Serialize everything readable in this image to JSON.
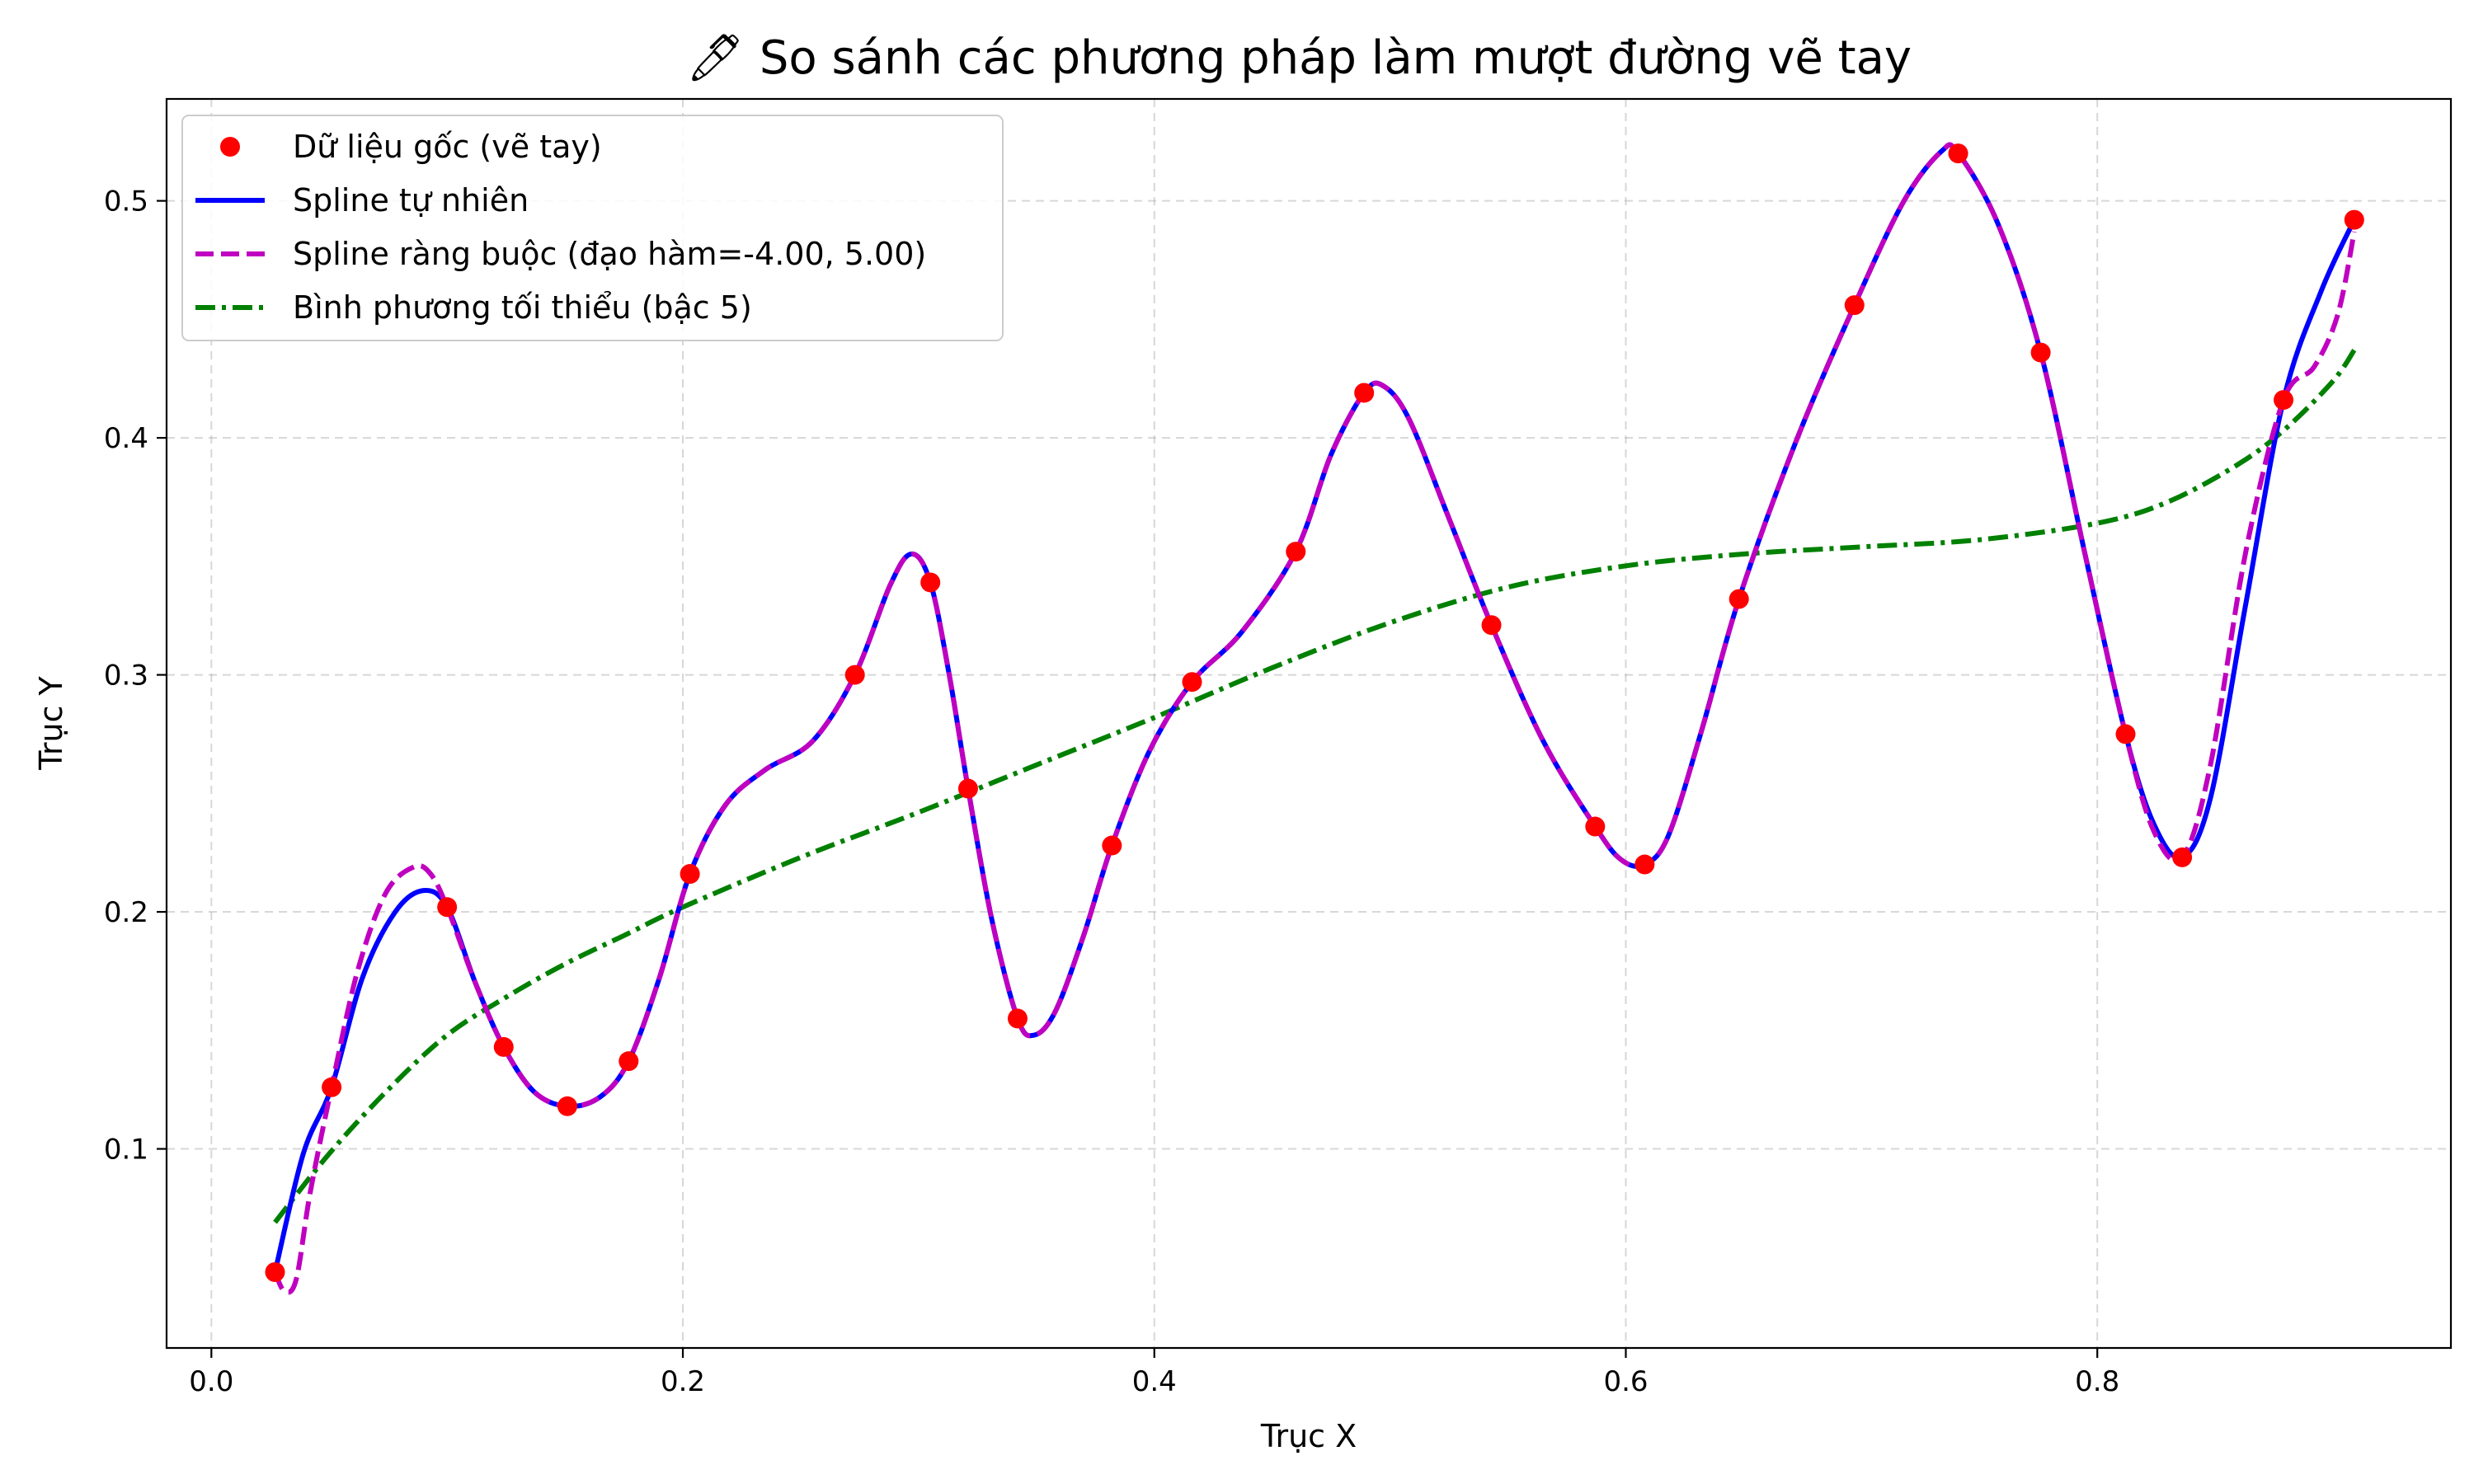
{
  "chart_data": {
    "type": "line",
    "title": "🖊 So sánh các phương pháp làm mượt đường vẽ tay",
    "xlabel": "Trục X",
    "ylabel": "Trục Y",
    "xlim": [
      -0.019,
      0.95
    ],
    "ylim": [
      0.016,
      0.543
    ],
    "xticks": [
      0.0,
      0.2,
      0.4,
      0.6,
      0.8
    ],
    "xtick_labels": [
      "0.0",
      "0.2",
      "0.4",
      "0.6",
      "0.8"
    ],
    "yticks": [
      0.1,
      0.2,
      0.3,
      0.4,
      0.5
    ],
    "ytick_labels": [
      "0.1",
      "0.2",
      "0.3",
      "0.4",
      "0.5"
    ],
    "grid": true,
    "legend_position": "top-left",
    "series": [
      {
        "name": "Dữ liệu gốc (vẽ tay)",
        "kind": "scatter",
        "color": "#ff0000",
        "points": [
          [
            0.027,
            0.048
          ],
          [
            0.051,
            0.126
          ],
          [
            0.1,
            0.202
          ],
          [
            0.124,
            0.143
          ],
          [
            0.151,
            0.118
          ],
          [
            0.177,
            0.137
          ],
          [
            0.203,
            0.216
          ],
          [
            0.273,
            0.3
          ],
          [
            0.305,
            0.339
          ],
          [
            0.321,
            0.252
          ],
          [
            0.342,
            0.155
          ],
          [
            0.382,
            0.228
          ],
          [
            0.416,
            0.297
          ],
          [
            0.46,
            0.352
          ],
          [
            0.489,
            0.419
          ],
          [
            0.543,
            0.321
          ],
          [
            0.587,
            0.236
          ],
          [
            0.608,
            0.22
          ],
          [
            0.648,
            0.332
          ],
          [
            0.697,
            0.456
          ],
          [
            0.741,
            0.52
          ],
          [
            0.776,
            0.436
          ],
          [
            0.812,
            0.275
          ],
          [
            0.836,
            0.223
          ],
          [
            0.879,
            0.416
          ],
          [
            0.909,
            0.492
          ]
        ]
      },
      {
        "name": "Spline tự nhiên",
        "kind": "line",
        "style": "solid",
        "color": "#0000ff",
        "points": [
          [
            0.027,
            0.048
          ],
          [
            0.039,
            0.098
          ],
          [
            0.051,
            0.126
          ],
          [
            0.064,
            0.172
          ],
          [
            0.078,
            0.2
          ],
          [
            0.09,
            0.209
          ],
          [
            0.1,
            0.202
          ],
          [
            0.112,
            0.17
          ],
          [
            0.124,
            0.143
          ],
          [
            0.137,
            0.124
          ],
          [
            0.151,
            0.118
          ],
          [
            0.165,
            0.122
          ],
          [
            0.177,
            0.137
          ],
          [
            0.19,
            0.172
          ],
          [
            0.203,
            0.216
          ],
          [
            0.218,
            0.245
          ],
          [
            0.235,
            0.26
          ],
          [
            0.255,
            0.272
          ],
          [
            0.273,
            0.3
          ],
          [
            0.288,
            0.338
          ],
          [
            0.297,
            0.351
          ],
          [
            0.305,
            0.339
          ],
          [
            0.313,
            0.3
          ],
          [
            0.321,
            0.252
          ],
          [
            0.331,
            0.197
          ],
          [
            0.342,
            0.155
          ],
          [
            0.349,
            0.148
          ],
          [
            0.358,
            0.158
          ],
          [
            0.37,
            0.19
          ],
          [
            0.382,
            0.228
          ],
          [
            0.398,
            0.268
          ],
          [
            0.416,
            0.297
          ],
          [
            0.437,
            0.318
          ],
          [
            0.46,
            0.352
          ],
          [
            0.475,
            0.393
          ],
          [
            0.489,
            0.419
          ],
          [
            0.497,
            0.422
          ],
          [
            0.508,
            0.408
          ],
          [
            0.525,
            0.366
          ],
          [
            0.543,
            0.321
          ],
          [
            0.565,
            0.272
          ],
          [
            0.587,
            0.236
          ],
          [
            0.598,
            0.222
          ],
          [
            0.608,
            0.22
          ],
          [
            0.618,
            0.232
          ],
          [
            0.632,
            0.276
          ],
          [
            0.648,
            0.332
          ],
          [
            0.672,
            0.398
          ],
          [
            0.697,
            0.456
          ],
          [
            0.718,
            0.5
          ],
          [
            0.734,
            0.521
          ],
          [
            0.741,
            0.52
          ],
          [
            0.758,
            0.49
          ],
          [
            0.776,
            0.436
          ],
          [
            0.795,
            0.35
          ],
          [
            0.812,
            0.275
          ],
          [
            0.824,
            0.237
          ],
          [
            0.836,
            0.223
          ],
          [
            0.848,
            0.248
          ],
          [
            0.863,
            0.33
          ],
          [
            0.879,
            0.416
          ],
          [
            0.895,
            0.462
          ],
          [
            0.909,
            0.492
          ]
        ]
      },
      {
        "name": "Spline ràng buộc (đạo hàm=-4.00, 5.00)",
        "kind": "line",
        "style": "dashed",
        "color": "#c000c0",
        "points": [
          [
            0.027,
            0.048
          ],
          [
            0.031,
            0.04
          ],
          [
            0.036,
            0.045
          ],
          [
            0.042,
            0.082
          ],
          [
            0.051,
            0.126
          ],
          [
            0.062,
            0.175
          ],
          [
            0.074,
            0.208
          ],
          [
            0.086,
            0.219
          ],
          [
            0.093,
            0.216
          ],
          [
            0.1,
            0.202
          ],
          [
            0.112,
            0.17
          ],
          [
            0.124,
            0.143
          ],
          [
            0.137,
            0.124
          ],
          [
            0.151,
            0.118
          ],
          [
            0.165,
            0.122
          ],
          [
            0.177,
            0.137
          ],
          [
            0.19,
            0.172
          ],
          [
            0.203,
            0.216
          ],
          [
            0.218,
            0.245
          ],
          [
            0.235,
            0.26
          ],
          [
            0.255,
            0.272
          ],
          [
            0.273,
            0.3
          ],
          [
            0.288,
            0.338
          ],
          [
            0.297,
            0.351
          ],
          [
            0.305,
            0.339
          ],
          [
            0.313,
            0.3
          ],
          [
            0.321,
            0.252
          ],
          [
            0.331,
            0.197
          ],
          [
            0.342,
            0.155
          ],
          [
            0.349,
            0.148
          ],
          [
            0.358,
            0.158
          ],
          [
            0.37,
            0.19
          ],
          [
            0.382,
            0.228
          ],
          [
            0.398,
            0.268
          ],
          [
            0.416,
            0.297
          ],
          [
            0.437,
            0.318
          ],
          [
            0.46,
            0.352
          ],
          [
            0.475,
            0.393
          ],
          [
            0.489,
            0.419
          ],
          [
            0.497,
            0.422
          ],
          [
            0.508,
            0.408
          ],
          [
            0.525,
            0.366
          ],
          [
            0.543,
            0.321
          ],
          [
            0.565,
            0.272
          ],
          [
            0.587,
            0.236
          ],
          [
            0.598,
            0.222
          ],
          [
            0.608,
            0.22
          ],
          [
            0.618,
            0.232
          ],
          [
            0.632,
            0.276
          ],
          [
            0.648,
            0.332
          ],
          [
            0.672,
            0.398
          ],
          [
            0.697,
            0.456
          ],
          [
            0.718,
            0.5
          ],
          [
            0.734,
            0.521
          ],
          [
            0.741,
            0.52
          ],
          [
            0.758,
            0.49
          ],
          [
            0.776,
            0.436
          ],
          [
            0.795,
            0.35
          ],
          [
            0.812,
            0.275
          ],
          [
            0.824,
            0.234
          ],
          [
            0.836,
            0.223
          ],
          [
            0.848,
            0.262
          ],
          [
            0.863,
            0.352
          ],
          [
            0.879,
            0.416
          ],
          [
            0.892,
            0.43
          ],
          [
            0.902,
            0.452
          ],
          [
            0.909,
            0.487
          ]
        ]
      },
      {
        "name": "Bình phương tối thiểu (bậc 5)",
        "kind": "line",
        "style": "dashdot",
        "color": "#008000",
        "points": [
          [
            0.027,
            0.069
          ],
          [
            0.05,
            0.098
          ],
          [
            0.075,
            0.125
          ],
          [
            0.1,
            0.148
          ],
          [
            0.125,
            0.164
          ],
          [
            0.15,
            0.178
          ],
          [
            0.175,
            0.19
          ],
          [
            0.2,
            0.202
          ],
          [
            0.25,
            0.223
          ],
          [
            0.3,
            0.242
          ],
          [
            0.35,
            0.262
          ],
          [
            0.4,
            0.282
          ],
          [
            0.45,
            0.303
          ],
          [
            0.5,
            0.322
          ],
          [
            0.55,
            0.337
          ],
          [
            0.6,
            0.346
          ],
          [
            0.65,
            0.351
          ],
          [
            0.7,
            0.354
          ],
          [
            0.75,
            0.357
          ],
          [
            0.8,
            0.364
          ],
          [
            0.83,
            0.373
          ],
          [
            0.86,
            0.389
          ],
          [
            0.88,
            0.404
          ],
          [
            0.9,
            0.424
          ],
          [
            0.909,
            0.437
          ]
        ]
      }
    ]
  }
}
